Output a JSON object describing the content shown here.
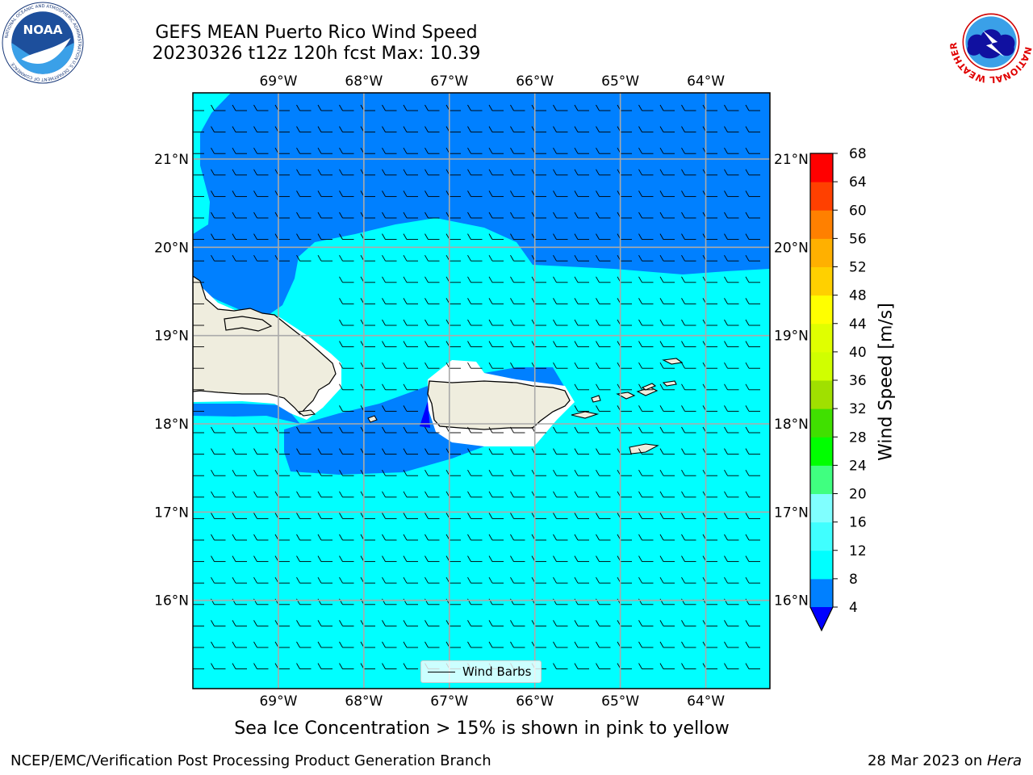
{
  "header": {
    "title_line1": "GEFS MEAN Puerto Rico Wind Speed",
    "title_line2": "20230326 t12z 120h fcst   Max: 10.39"
  },
  "logos": {
    "left_text": "NOAA",
    "left_ring": "NATIONAL OCEANIC AND ATMOSPHERIC ADMINISTRATION  U.S. DEPARTMENT OF COMMERCE",
    "right_ring": "NATIONAL WEATHER SERVICE",
    "left_icon": "noaa-logo-icon",
    "right_icon": "nws-logo-icon"
  },
  "map": {
    "lon_labels": [
      "69°W",
      "68°W",
      "67°W",
      "66°W",
      "65°W",
      "64°W"
    ],
    "lat_labels": [
      "21°N",
      "20°N",
      "19°N",
      "18°N",
      "17°N",
      "16°N"
    ],
    "lon_range": [
      -70.0,
      -63.25
    ],
    "lat_range": [
      15.0,
      21.75
    ],
    "gridlines": true,
    "land_color": "#efedde",
    "ocean_fill_8_12": "#00ffff",
    "ocean_fill_4_8": "#0080ff",
    "calm_fill": "#ffffff",
    "barb_icon": "wind-barb-icon",
    "wind_direction": "from east"
  },
  "legend": {
    "label": "Wind Barbs",
    "position": "bottom-center"
  },
  "colorbar": {
    "title": "Wind Speed [m/s]",
    "ticks": [
      "4",
      "8",
      "12",
      "16",
      "20",
      "24",
      "28",
      "32",
      "36",
      "40",
      "44",
      "48",
      "52",
      "56",
      "60",
      "64",
      "68"
    ],
    "levels": [
      4,
      8,
      12,
      16,
      20,
      24,
      28,
      32,
      36,
      40,
      44,
      48,
      52,
      56,
      60,
      64,
      68
    ],
    "colors": [
      "#0080ff",
      "#00ffff",
      "#40ffff",
      "#80ffff",
      "#40ff80",
      "#00ff00",
      "#40e000",
      "#a0e000",
      "#d0ff00",
      "#e0ff00",
      "#ffff00",
      "#ffd000",
      "#ffb000",
      "#ff8000",
      "#ff4000",
      "#ff0000"
    ],
    "under_color": "#0000ff"
  },
  "chart_data": {
    "type": "heatmap",
    "title": "GEFS MEAN Puerto Rico Wind Speed",
    "subtitle": "20230326 t12z 120h fcst   Max: 10.39",
    "max_value": 10.39,
    "units": "m/s",
    "xlim": [
      -70.0,
      -63.25
    ],
    "ylim": [
      15.0,
      21.75
    ]
  },
  "caption": {
    "text": "Sea Ice Concentration > 15% is shown in pink to yellow"
  },
  "footer": {
    "left": "NCEP/EMC/Verification Post Processing Product Generation Branch",
    "right_prefix": "28 Mar 2023 on ",
    "right_host": "Hera"
  }
}
